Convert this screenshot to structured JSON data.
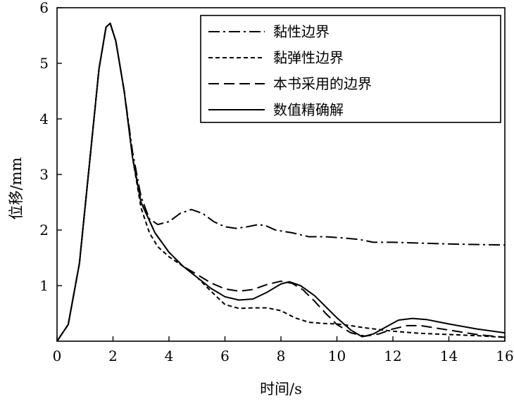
{
  "chart_data": {
    "type": "line",
    "xlabel": "时间/s",
    "ylabel": "位移/mm",
    "xlim": [
      0,
      16
    ],
    "ylim": [
      0,
      6
    ],
    "xticks": [
      0,
      2,
      4,
      6,
      8,
      10,
      12,
      14,
      16
    ],
    "yticks": [
      1,
      2,
      3,
      4,
      5,
      6
    ],
    "x_tick_labels": [
      "0",
      "2",
      "4",
      "6",
      "8",
      "10",
      "12",
      "14",
      "16"
    ],
    "y_tick_labels": [
      "1",
      "2",
      "3",
      "4",
      "5",
      "6"
    ],
    "grid": false,
    "legend_position": "top-right",
    "series": [
      {
        "name": "黏性边界",
        "dash": "dashdot",
        "points": [
          [
            0,
            0
          ],
          [
            0.4,
            0.3
          ],
          [
            0.8,
            1.4
          ],
          [
            1.2,
            3.4
          ],
          [
            1.5,
            4.9
          ],
          [
            1.75,
            5.65
          ],
          [
            1.9,
            5.72
          ],
          [
            2.1,
            5.4
          ],
          [
            2.4,
            4.5
          ],
          [
            2.7,
            3.4
          ],
          [
            3.0,
            2.6
          ],
          [
            3.3,
            2.2
          ],
          [
            3.6,
            2.1
          ],
          [
            4.0,
            2.15
          ],
          [
            4.4,
            2.3
          ],
          [
            4.8,
            2.37
          ],
          [
            5.2,
            2.3
          ],
          [
            5.6,
            2.15
          ],
          [
            6.0,
            2.06
          ],
          [
            6.4,
            2.03
          ],
          [
            6.8,
            2.06
          ],
          [
            7.2,
            2.1
          ],
          [
            7.5,
            2.07
          ],
          [
            7.8,
            2.0
          ],
          [
            8.4,
            1.95
          ],
          [
            9.0,
            1.88
          ],
          [
            9.6,
            1.88
          ],
          [
            10.2,
            1.86
          ],
          [
            10.8,
            1.83
          ],
          [
            11.3,
            1.78
          ],
          [
            12,
            1.78
          ],
          [
            14,
            1.75
          ],
          [
            16,
            1.73
          ]
        ]
      },
      {
        "name": "黏弹性边界",
        "dash": "dashed-short",
        "points": [
          [
            0,
            0
          ],
          [
            0.4,
            0.3
          ],
          [
            0.8,
            1.4
          ],
          [
            1.2,
            3.4
          ],
          [
            1.5,
            4.9
          ],
          [
            1.75,
            5.65
          ],
          [
            1.9,
            5.72
          ],
          [
            2.1,
            5.4
          ],
          [
            2.4,
            4.5
          ],
          [
            2.7,
            3.3
          ],
          [
            3.0,
            2.4
          ],
          [
            3.3,
            1.95
          ],
          [
            3.6,
            1.7
          ],
          [
            4.0,
            1.52
          ],
          [
            4.5,
            1.35
          ],
          [
            5.0,
            1.15
          ],
          [
            5.5,
            0.9
          ],
          [
            6.0,
            0.66
          ],
          [
            6.5,
            0.59
          ],
          [
            7.0,
            0.6
          ],
          [
            7.5,
            0.6
          ],
          [
            8.0,
            0.55
          ],
          [
            8.5,
            0.42
          ],
          [
            9.0,
            0.34
          ],
          [
            9.5,
            0.32
          ],
          [
            10.0,
            0.31
          ],
          [
            10.5,
            0.28
          ],
          [
            11.0,
            0.24
          ],
          [
            12.0,
            0.18
          ],
          [
            13.0,
            0.14
          ],
          [
            14.0,
            0.12
          ],
          [
            15.0,
            0.1
          ],
          [
            16.0,
            0.07
          ]
        ]
      },
      {
        "name": "本书采用的边界",
        "dash": "dashed-long",
        "points": [
          [
            0,
            0
          ],
          [
            0.4,
            0.3
          ],
          [
            0.8,
            1.4
          ],
          [
            1.2,
            3.4
          ],
          [
            1.5,
            4.9
          ],
          [
            1.75,
            5.65
          ],
          [
            1.9,
            5.72
          ],
          [
            2.1,
            5.4
          ],
          [
            2.4,
            4.5
          ],
          [
            2.7,
            3.3
          ],
          [
            3.0,
            2.5
          ],
          [
            3.5,
            1.95
          ],
          [
            4.0,
            1.6
          ],
          [
            4.5,
            1.35
          ],
          [
            5.0,
            1.2
          ],
          [
            5.5,
            1.05
          ],
          [
            6.0,
            0.94
          ],
          [
            6.5,
            0.9
          ],
          [
            7.0,
            0.93
          ],
          [
            7.5,
            1.02
          ],
          [
            8.0,
            1.08
          ],
          [
            8.4,
            1.04
          ],
          [
            8.8,
            0.92
          ],
          [
            9.2,
            0.72
          ],
          [
            9.6,
            0.5
          ],
          [
            10.0,
            0.3
          ],
          [
            10.5,
            0.15
          ],
          [
            11.0,
            0.09
          ],
          [
            11.5,
            0.13
          ],
          [
            12.0,
            0.22
          ],
          [
            12.5,
            0.28
          ],
          [
            13.0,
            0.28
          ],
          [
            14.0,
            0.2
          ],
          [
            15.0,
            0.12
          ],
          [
            16.0,
            0.07
          ]
        ]
      },
      {
        "name": "数值精确解",
        "dash": "solid",
        "points": [
          [
            0,
            0
          ],
          [
            0.4,
            0.3
          ],
          [
            0.8,
            1.4
          ],
          [
            1.2,
            3.4
          ],
          [
            1.5,
            4.9
          ],
          [
            1.75,
            5.65
          ],
          [
            1.9,
            5.72
          ],
          [
            2.1,
            5.4
          ],
          [
            2.4,
            4.5
          ],
          [
            2.7,
            3.3
          ],
          [
            3.0,
            2.5
          ],
          [
            3.5,
            1.95
          ],
          [
            4.0,
            1.6
          ],
          [
            4.5,
            1.35
          ],
          [
            5.0,
            1.15
          ],
          [
            5.5,
            0.95
          ],
          [
            6.0,
            0.8
          ],
          [
            6.5,
            0.74
          ],
          [
            7.0,
            0.76
          ],
          [
            7.5,
            0.88
          ],
          [
            8.0,
            1.03
          ],
          [
            8.3,
            1.07
          ],
          [
            8.7,
            1.0
          ],
          [
            9.2,
            0.82
          ],
          [
            9.6,
            0.62
          ],
          [
            10.0,
            0.42
          ],
          [
            10.5,
            0.2
          ],
          [
            10.9,
            0.08
          ],
          [
            11.3,
            0.13
          ],
          [
            11.8,
            0.27
          ],
          [
            12.2,
            0.38
          ],
          [
            12.7,
            0.41
          ],
          [
            13.2,
            0.39
          ],
          [
            14.0,
            0.31
          ],
          [
            15.0,
            0.22
          ],
          [
            16.0,
            0.15
          ]
        ]
      }
    ]
  }
}
